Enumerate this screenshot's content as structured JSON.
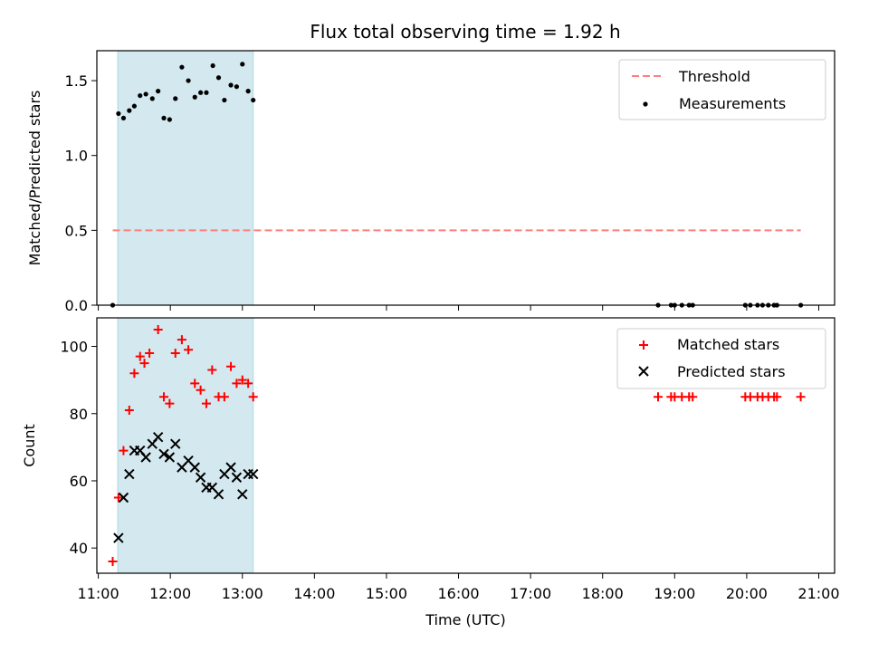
{
  "chart_data": [
    {
      "type": "scatter",
      "panel": "top",
      "title": "Flux total observing time = 1.92 h",
      "xlabel": "",
      "ylabel": "Matched/Predicted stars",
      "xlim": [
        10.98,
        21.22
      ],
      "ylim": [
        0,
        1.7
      ],
      "yticks": [
        0.0,
        0.5,
        1.0,
        1.5
      ],
      "ytick_labels": [
        "0.0",
        "0.5",
        "1.0",
        "1.5"
      ],
      "legend_position": "upper right",
      "shaded_span": {
        "x_start": 11.27,
        "x_end": 13.15,
        "color": "#d3e9ef"
      },
      "threshold": {
        "name": "Threshold",
        "y": 0.5,
        "x_start": 11.2,
        "x_end": 20.75,
        "color": "#ff7f7f"
      },
      "series": [
        {
          "name": "Measurements",
          "color": "#000000",
          "points": [
            [
              11.2,
              0.0
            ],
            [
              11.28,
              1.28
            ],
            [
              11.35,
              1.25
            ],
            [
              11.43,
              1.3
            ],
            [
              11.5,
              1.33
            ],
            [
              11.58,
              1.4
            ],
            [
              11.66,
              1.41
            ],
            [
              11.75,
              1.38
            ],
            [
              11.83,
              1.43
            ],
            [
              11.91,
              1.25
            ],
            [
              11.99,
              1.24
            ],
            [
              12.07,
              1.38
            ],
            [
              12.16,
              1.59
            ],
            [
              12.25,
              1.5
            ],
            [
              12.34,
              1.39
            ],
            [
              12.42,
              1.42
            ],
            [
              12.5,
              1.42
            ],
            [
              12.59,
              1.6
            ],
            [
              12.67,
              1.52
            ],
            [
              12.75,
              1.37
            ],
            [
              12.84,
              1.47
            ],
            [
              12.92,
              1.46
            ],
            [
              13.0,
              1.61
            ],
            [
              13.08,
              1.43
            ],
            [
              13.15,
              1.37
            ],
            [
              18.77,
              0.0
            ],
            [
              18.95,
              0.0
            ],
            [
              19.0,
              0.0
            ],
            [
              19.1,
              0.0
            ],
            [
              19.2,
              0.0
            ],
            [
              19.25,
              0.0
            ],
            [
              19.98,
              0.0
            ],
            [
              20.05,
              0.0
            ],
            [
              20.15,
              0.0
            ],
            [
              20.22,
              0.0
            ],
            [
              20.3,
              0.0
            ],
            [
              20.38,
              0.0
            ],
            [
              20.42,
              0.0
            ],
            [
              20.75,
              0.0
            ]
          ]
        }
      ],
      "legend": [
        "Threshold",
        "Measurements"
      ]
    },
    {
      "type": "scatter",
      "panel": "bottom",
      "title": "",
      "xlabel": "Time (UTC)",
      "ylabel": "Count",
      "xlim": [
        10.98,
        21.22
      ],
      "ylim": [
        32.5,
        108.5
      ],
      "yticks": [
        40,
        60,
        80,
        100
      ],
      "ytick_labels": [
        "40",
        "60",
        "80",
        "100"
      ],
      "xticks": [
        11,
        12,
        13,
        14,
        15,
        16,
        17,
        18,
        19,
        20,
        21
      ],
      "xtick_labels": [
        "11:00",
        "12:00",
        "13:00",
        "14:00",
        "15:00",
        "16:00",
        "17:00",
        "18:00",
        "19:00",
        "20:00",
        "21:00"
      ],
      "legend_position": "upper right",
      "shaded_span": {
        "x_start": 11.27,
        "x_end": 13.15,
        "color": "#d3e9ef"
      },
      "series": [
        {
          "name": "Matched stars",
          "marker": "plus",
          "color": "#ff0000",
          "points": [
            [
              11.2,
              36
            ],
            [
              11.28,
              55
            ],
            [
              11.35,
              69
            ],
            [
              11.43,
              81
            ],
            [
              11.5,
              92
            ],
            [
              11.58,
              97
            ],
            [
              11.64,
              95
            ],
            [
              11.71,
              98
            ],
            [
              11.83,
              105
            ],
            [
              11.91,
              85
            ],
            [
              11.99,
              83
            ],
            [
              12.07,
              98
            ],
            [
              12.16,
              102
            ],
            [
              12.25,
              99
            ],
            [
              12.34,
              89
            ],
            [
              12.42,
              87
            ],
            [
              12.5,
              83
            ],
            [
              12.58,
              93
            ],
            [
              12.67,
              85
            ],
            [
              12.75,
              85
            ],
            [
              12.84,
              94
            ],
            [
              12.92,
              89
            ],
            [
              13.0,
              90
            ],
            [
              13.08,
              89
            ],
            [
              13.15,
              85
            ],
            [
              18.77,
              85
            ],
            [
              18.95,
              85
            ],
            [
              19.0,
              85
            ],
            [
              19.1,
              85
            ],
            [
              19.2,
              85
            ],
            [
              19.25,
              85
            ],
            [
              19.98,
              85
            ],
            [
              20.05,
              85
            ],
            [
              20.15,
              85
            ],
            [
              20.22,
              85
            ],
            [
              20.3,
              85
            ],
            [
              20.38,
              85
            ],
            [
              20.42,
              85
            ],
            [
              20.75,
              85
            ]
          ]
        },
        {
          "name": "Predicted stars",
          "marker": "x",
          "color": "#000000",
          "points": [
            [
              11.28,
              43
            ],
            [
              11.35,
              55
            ],
            [
              11.43,
              62
            ],
            [
              11.5,
              69
            ],
            [
              11.58,
              69
            ],
            [
              11.66,
              67
            ],
            [
              11.75,
              71
            ],
            [
              11.83,
              73
            ],
            [
              11.91,
              68
            ],
            [
              11.99,
              67
            ],
            [
              12.07,
              71
            ],
            [
              12.16,
              64
            ],
            [
              12.25,
              66
            ],
            [
              12.34,
              64
            ],
            [
              12.42,
              61
            ],
            [
              12.5,
              58
            ],
            [
              12.58,
              58
            ],
            [
              12.67,
              56
            ],
            [
              12.75,
              62
            ],
            [
              12.84,
              64
            ],
            [
              12.92,
              61
            ],
            [
              13.0,
              56
            ],
            [
              13.08,
              62
            ],
            [
              13.15,
              62
            ]
          ]
        }
      ],
      "legend": [
        "Matched stars",
        "Predicted stars"
      ]
    }
  ]
}
